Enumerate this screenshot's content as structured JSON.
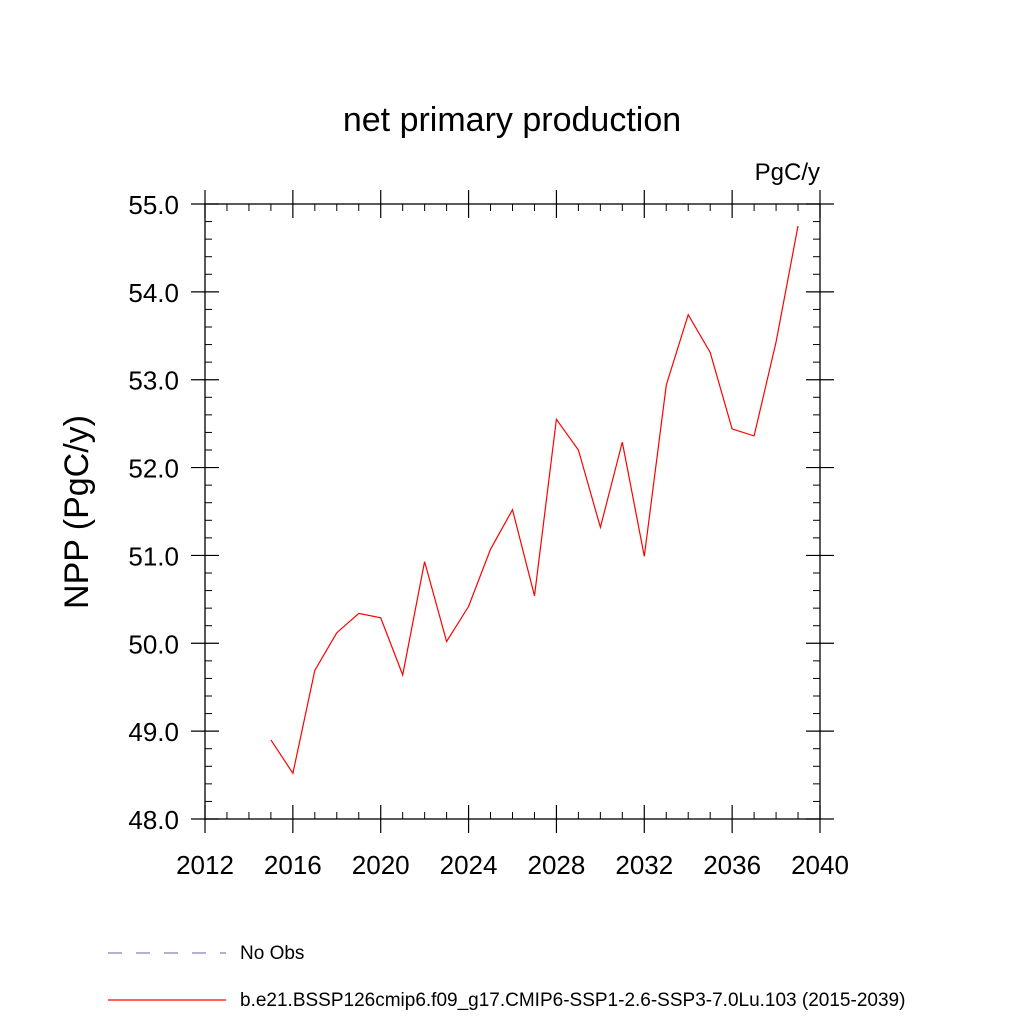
{
  "chart_data": {
    "type": "line",
    "title": "net primary production",
    "units_label": "PgC/y",
    "ylabel": "NPP  (PgC/y)",
    "xlabel": "",
    "xlim": [
      2012,
      2040
    ],
    "ylim": [
      48.0,
      55.0
    ],
    "xticks": [
      2012,
      2016,
      2020,
      2024,
      2028,
      2032,
      2036,
      2040
    ],
    "yticks": [
      48.0,
      49.0,
      50.0,
      51.0,
      52.0,
      53.0,
      54.0,
      55.0
    ],
    "grid": false,
    "legend_position": "bottom",
    "series": [
      {
        "name": "b.e21.BSSP126cmip6.f09_g17.CMIP6-SSP1-2.6-SSP3-7.0Lu.103 (2015-2039)",
        "color": "#ff0000",
        "style": "solid",
        "x": [
          2015,
          2016,
          2017,
          2018,
          2019,
          2020,
          2021,
          2022,
          2023,
          2024,
          2025,
          2026,
          2027,
          2028,
          2029,
          2030,
          2031,
          2032,
          2033,
          2034,
          2035,
          2036,
          2037,
          2038,
          2039
        ],
        "y": [
          48.9,
          48.52,
          49.69,
          50.12,
          50.34,
          50.29,
          49.64,
          50.93,
          50.02,
          50.42,
          51.07,
          51.52,
          50.54,
          52.55,
          52.2,
          51.32,
          52.29,
          50.99,
          52.94,
          53.74,
          53.31,
          52.44,
          52.36,
          53.43,
          54.75
        ]
      }
    ],
    "legend": [
      {
        "label": "No Obs",
        "color": "#8d7fb5",
        "style": "dashed"
      },
      {
        "label": "b.e21.BSSP126cmip6.f09_g17.CMIP6-SSP1-2.6-SSP3-7.0Lu.103 (2015-2039)",
        "color": "#ff0000",
        "style": "solid"
      }
    ]
  }
}
